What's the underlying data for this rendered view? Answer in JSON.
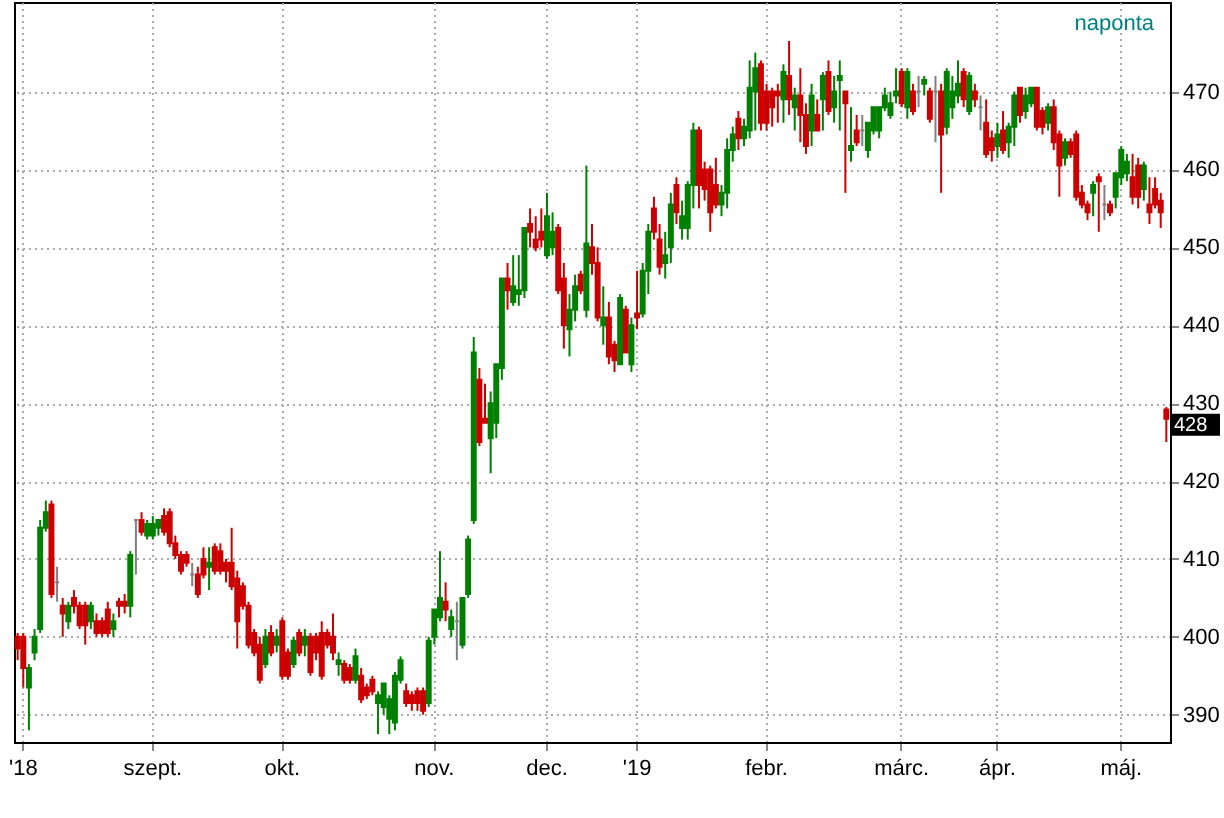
{
  "chart_data": {
    "type": "candlestick",
    "categories": [
      null,
      "'18",
      null,
      null,
      null,
      null,
      null,
      null,
      null,
      null,
      null,
      null,
      null,
      null,
      null,
      null,
      null,
      null,
      null,
      null,
      null,
      null,
      null,
      null,
      "szept.",
      null,
      null,
      null,
      null,
      null,
      null,
      null,
      null,
      null,
      null,
      null,
      null,
      null,
      null,
      null,
      null,
      null,
      null,
      null,
      null,
      null,
      null,
      "okt.",
      null,
      null,
      null,
      null,
      null,
      null,
      null,
      null,
      null,
      null,
      null,
      null,
      null,
      null,
      null,
      null,
      null,
      null,
      null,
      null,
      null,
      null,
      null,
      null,
      null,
      null,
      "nov.",
      null,
      null,
      null,
      null,
      null,
      null,
      null,
      null,
      null,
      null,
      null,
      null,
      null,
      null,
      null,
      null,
      null,
      null,
      null,
      "dec.",
      null,
      null,
      null,
      null,
      null,
      null,
      null,
      null,
      null,
      null,
      null,
      null,
      null,
      null,
      null,
      "'19",
      null,
      null,
      null,
      null,
      null,
      null,
      null,
      null,
      null,
      null,
      null,
      null,
      null,
      null,
      null,
      null,
      null,
      null,
      null,
      null,
      null,
      null,
      "febr.",
      null,
      null,
      null,
      null,
      null,
      null,
      null,
      null,
      null,
      null,
      null,
      null,
      null,
      null,
      null,
      null,
      null,
      null,
      null,
      null,
      null,
      null,
      null,
      "márc.",
      null,
      null,
      null,
      null,
      null,
      null,
      null,
      null,
      null,
      null,
      null,
      null,
      null,
      null,
      null,
      null,
      "ápr.",
      null,
      null,
      null,
      null,
      null,
      null,
      null,
      null,
      null,
      null,
      null,
      null,
      null,
      null,
      null,
      null,
      null,
      null,
      null,
      null,
      null,
      "máj.",
      null,
      null,
      null,
      null,
      null,
      null,
      null,
      null
    ],
    "ohlc": [
      [
        400,
        400.5,
        397,
        398.5
      ],
      [
        400,
        400.5,
        393.5,
        396
      ],
      [
        393.5,
        396.5,
        388,
        396
      ],
      [
        398,
        401,
        397,
        400
      ],
      [
        401,
        415,
        400.5,
        414
      ],
      [
        414,
        417.5,
        413.5,
        416
      ],
      [
        417,
        417.5,
        405,
        405.5
      ],
      [
        407,
        409,
        404.5,
        407
      ],
      [
        404,
        405,
        400,
        403
      ],
      [
        402,
        404.5,
        401,
        404
      ],
      [
        405,
        406,
        403,
        404
      ],
      [
        404,
        404.5,
        401,
        401.5
      ],
      [
        404,
        404.5,
        399,
        401.5
      ],
      [
        402,
        404.5,
        401,
        404
      ],
      [
        402,
        403,
        400,
        400.5
      ],
      [
        402,
        402.5,
        400,
        400.5
      ],
      [
        403.5,
        404.5,
        400,
        400.5
      ],
      [
        401,
        403,
        400,
        402
      ],
      [
        404.5,
        405,
        402.5,
        404
      ],
      [
        404.5,
        405.5,
        403,
        404
      ],
      [
        404,
        411,
        402.5,
        410.5
      ],
      [
        415,
        415,
        408,
        415
      ],
      [
        415,
        416,
        413,
        413.5
      ],
      [
        413,
        415,
        412.5,
        414.5
      ],
      [
        413,
        415.5,
        412.5,
        414.5
      ],
      [
        414,
        415,
        413,
        415
      ],
      [
        415.5,
        416.5,
        413,
        413.5
      ],
      [
        416,
        416.5,
        411.5,
        412
      ],
      [
        412,
        413,
        410,
        410.5
      ],
      [
        410.5,
        411,
        408,
        408.5
      ],
      [
        410.5,
        411,
        409,
        409.5
      ],
      [
        408,
        409.5,
        406.5,
        408
      ],
      [
        408,
        409,
        405,
        405.5
      ],
      [
        410,
        411.5,
        407.5,
        408
      ],
      [
        409,
        411.5,
        406,
        409.5
      ],
      [
        411.5,
        412,
        408,
        408.5
      ],
      [
        411,
        412,
        408,
        408.5
      ],
      [
        409.5,
        410,
        407,
        408.5
      ],
      [
        409.5,
        414,
        406,
        406.5
      ],
      [
        407.5,
        408.5,
        398.5,
        402
      ],
      [
        406.5,
        407,
        403.5,
        404
      ],
      [
        404,
        404.5,
        398.5,
        399
      ],
      [
        400.5,
        401,
        397.5,
        398
      ],
      [
        399,
        400,
        394,
        394.5
      ],
      [
        396.5,
        401,
        396,
        400
      ],
      [
        400.5,
        401.5,
        397.5,
        398
      ],
      [
        399,
        401,
        398,
        400
      ],
      [
        402,
        402.5,
        394.5,
        395
      ],
      [
        398,
        398.5,
        394.5,
        395
      ],
      [
        396.5,
        400,
        396,
        399.5
      ],
      [
        400.5,
        401,
        397.5,
        398
      ],
      [
        399,
        401,
        397.5,
        400
      ],
      [
        400,
        400.5,
        395,
        395.5
      ],
      [
        400,
        400.5,
        397,
        398
      ],
      [
        400.5,
        402,
        394.5,
        395
      ],
      [
        400.5,
        401,
        398.5,
        399
      ],
      [
        400,
        403,
        397,
        398
      ],
      [
        396.5,
        398,
        395,
        397
      ],
      [
        396.5,
        397,
        394,
        394.5
      ],
      [
        396,
        396.5,
        394,
        394.5
      ],
      [
        394.5,
        398.5,
        394,
        397.5
      ],
      [
        395,
        396,
        391.5,
        392
      ],
      [
        393.5,
        394,
        392,
        392.5
      ],
      [
        394.5,
        395,
        392.5,
        393
      ],
      [
        391.5,
        393,
        387.5,
        392.5
      ],
      [
        391,
        394,
        390,
        394
      ],
      [
        389.5,
        392.5,
        387.5,
        392
      ],
      [
        389,
        395.5,
        388,
        395
      ],
      [
        394.5,
        397.5,
        394,
        397
      ],
      [
        393,
        394,
        391,
        391.5
      ],
      [
        392.5,
        393,
        390.5,
        391.5
      ],
      [
        393,
        393.5,
        390.5,
        391.5
      ],
      [
        393,
        393.5,
        390,
        390.5
      ],
      [
        391.5,
        400,
        391,
        399.5
      ],
      [
        400,
        403.5,
        399,
        403.5
      ],
      [
        402.5,
        411,
        402,
        405
      ],
      [
        404.5,
        407,
        402,
        403.5
      ],
      [
        401,
        403.5,
        400,
        402.5
      ],
      [
        402,
        404.5,
        397,
        402
      ],
      [
        399,
        405,
        398.5,
        405
      ],
      [
        405.5,
        413,
        405,
        412.5
      ],
      [
        415,
        438.5,
        414.5,
        436.5
      ],
      [
        433,
        434.5,
        424.5,
        425
      ],
      [
        428,
        432.5,
        427.5,
        427.5
      ],
      [
        425.5,
        431.5,
        421,
        430
      ],
      [
        427.5,
        435,
        425.5,
        435
      ],
      [
        434.5,
        446,
        433,
        446
      ],
      [
        446,
        448,
        442,
        444.5
      ],
      [
        443,
        449,
        442.5,
        445
      ],
      [
        444,
        449,
        442.5,
        444.5
      ],
      [
        444.5,
        452.5,
        443.5,
        452.5
      ],
      [
        453,
        455,
        450,
        452
      ],
      [
        451,
        454,
        449.5,
        450
      ],
      [
        452,
        455,
        450,
        451
      ],
      [
        449,
        457,
        448.5,
        454
      ],
      [
        450,
        454.5,
        449,
        452
      ],
      [
        452.5,
        453,
        444,
        444.5
      ],
      [
        446,
        448,
        437,
        440
      ],
      [
        439.5,
        444,
        436,
        442
      ],
      [
        442,
        446.5,
        440.5,
        445
      ],
      [
        446.5,
        447,
        444,
        444.5
      ],
      [
        442,
        460.5,
        441,
        450.5
      ],
      [
        450,
        453,
        446.5,
        448
      ],
      [
        448,
        450,
        440.5,
        441
      ],
      [
        440,
        445,
        437.5,
        441
      ],
      [
        441,
        443,
        435,
        436
      ],
      [
        437.5,
        438,
        434,
        435.5
      ],
      [
        435,
        444,
        435,
        443.5
      ],
      [
        442,
        442.5,
        436.5,
        436.5
      ],
      [
        435,
        441,
        434,
        440
      ],
      [
        441.5,
        447,
        439.5,
        441
      ],
      [
        441.5,
        448,
        441,
        447
      ],
      [
        447,
        453,
        444,
        452
      ],
      [
        455,
        456.5,
        451,
        452
      ],
      [
        451,
        453,
        446.5,
        447.5
      ],
      [
        448,
        452,
        446,
        449
      ],
      [
        450,
        457,
        448,
        455.5
      ],
      [
        458,
        459,
        453,
        454.5
      ],
      [
        452.5,
        456,
        451,
        454
      ],
      [
        452.5,
        458.5,
        451,
        458
      ],
      [
        458,
        466,
        455,
        465
      ],
      [
        465,
        465.5,
        455,
        458
      ],
      [
        460,
        461,
        456,
        457.5
      ],
      [
        460,
        460.5,
        452,
        454.5
      ],
      [
        458,
        461.5,
        455,
        455.5
      ],
      [
        455.5,
        458,
        454,
        457
      ],
      [
        457,
        464,
        455,
        462.5
      ],
      [
        462.5,
        465.5,
        461,
        464.5
      ],
      [
        466.5,
        467.5,
        462.5,
        464
      ],
      [
        464,
        466.5,
        463,
        465.5
      ],
      [
        465,
        474,
        464,
        470.5
      ],
      [
        470,
        475,
        465,
        473
      ],
      [
        473.5,
        474,
        465,
        466
      ],
      [
        470,
        471,
        465,
        466
      ],
      [
        470,
        470.5,
        465.5,
        468
      ],
      [
        470,
        471,
        466,
        469.5
      ],
      [
        469,
        473.5,
        466,
        472.5
      ],
      [
        472,
        476.5,
        467,
        469
      ],
      [
        468,
        470.5,
        465,
        469.5
      ],
      [
        469.5,
        473,
        463.5,
        467
      ],
      [
        467,
        468.5,
        462,
        463
      ],
      [
        465,
        471,
        463,
        469.5
      ],
      [
        467,
        469,
        465,
        465
      ],
      [
        469,
        472.5,
        465,
        472
      ],
      [
        472.5,
        474,
        467,
        467.5
      ],
      [
        468,
        472,
        466,
        470
      ],
      [
        471.5,
        474,
        465,
        472
      ],
      [
        470,
        470,
        457,
        468.5
      ],
      [
        462.5,
        468,
        461,
        463
      ],
      [
        465,
        467,
        463,
        463.5
      ],
      [
        465,
        467,
        463,
        465
      ],
      [
        462.5,
        466,
        461.5,
        466
      ],
      [
        465,
        468,
        464.5,
        468
      ],
      [
        465,
        468,
        464,
        468
      ],
      [
        468,
        470.5,
        467.5,
        469.5
      ],
      [
        467,
        470,
        466.5,
        468.5
      ],
      [
        469.5,
        473,
        468.5,
        470
      ],
      [
        472.5,
        473,
        468,
        468.5
      ],
      [
        468,
        473,
        466.5,
        472.5
      ],
      [
        470,
        471,
        467,
        467.5
      ],
      [
        470,
        472,
        468,
        470
      ],
      [
        471,
        472,
        469.5,
        471.5
      ],
      [
        470,
        470.5,
        466,
        466.5
      ],
      [
        470,
        472,
        463.5,
        470
      ],
      [
        470,
        471,
        457,
        464.5
      ],
      [
        465.5,
        473,
        464.5,
        472.5
      ],
      [
        468,
        472,
        466.5,
        470
      ],
      [
        469.5,
        474,
        468.5,
        471
      ],
      [
        472.5,
        473,
        468,
        469
      ],
      [
        467.5,
        472.5,
        467,
        472
      ],
      [
        470,
        471,
        468,
        469
      ],
      [
        468,
        469.5,
        465,
        468
      ],
      [
        466,
        469,
        461.5,
        462
      ],
      [
        464,
        465,
        461,
        462.5
      ],
      [
        463,
        466,
        461.5,
        464.5
      ],
      [
        465,
        467.5,
        462,
        462.5
      ],
      [
        463.5,
        466,
        461.5,
        465.5
      ],
      [
        465.5,
        470,
        463,
        469.5
      ],
      [
        470.5,
        470.5,
        466,
        467
      ],
      [
        467.5,
        470.5,
        466.5,
        469.5
      ],
      [
        468.5,
        470.5,
        468,
        470.5
      ],
      [
        470.5,
        470.5,
        465,
        465.5
      ],
      [
        467.5,
        468,
        464.5,
        465.5
      ],
      [
        466,
        468.5,
        465,
        468
      ],
      [
        468,
        469,
        462.5,
        463.5
      ],
      [
        464.5,
        465,
        456.5,
        460.5
      ],
      [
        461.5,
        464,
        460.5,
        463.5
      ],
      [
        463.5,
        464,
        461.5,
        462
      ],
      [
        464.5,
        465,
        456,
        456.5
      ],
      [
        457,
        458,
        455,
        455.5
      ],
      [
        455.5,
        456,
        453.5,
        454.5
      ],
      [
        457,
        458.5,
        454,
        458
      ],
      [
        459,
        459.5,
        452,
        458.5
      ],
      [
        455.5,
        458,
        453.5,
        455.5
      ],
      [
        455.5,
        456,
        454,
        454.5
      ],
      [
        456.5,
        459.5,
        455,
        459.5
      ],
      [
        459,
        463,
        458,
        462.5
      ],
      [
        459.5,
        462,
        458.5,
        461
      ],
      [
        459,
        462,
        455.5,
        456.5
      ],
      [
        460.5,
        461.5,
        455,
        456.5
      ],
      [
        457.5,
        461,
        456,
        460.5
      ],
      [
        455.5,
        459,
        453,
        454.5
      ],
      [
        457.5,
        459,
        455,
        455.5
      ],
      [
        456,
        457,
        452.5,
        454.5
      ],
      [
        429.2,
        429.5,
        425,
        428
      ]
    ],
    "colors": [
      "#cc0000",
      "#cc0000",
      "#008000",
      "#008000",
      "#008000",
      "#008000",
      "#cc0000",
      "#808080",
      "#cc0000",
      "#008000",
      "#cc0000",
      "#cc0000",
      "#cc0000",
      "#008000",
      "#cc0000",
      "#cc0000",
      "#cc0000",
      "#008000",
      "#cc0000",
      "#cc0000",
      "#008000",
      "#808080",
      "#cc0000",
      "#008000",
      "#008000",
      "#008000",
      "#cc0000",
      "#cc0000",
      "#cc0000",
      "#cc0000",
      "#cc0000",
      "#808080",
      "#cc0000",
      "#cc0000",
      "#008000",
      "#cc0000",
      "#cc0000",
      "#cc0000",
      "#cc0000",
      "#cc0000",
      "#cc0000",
      "#cc0000",
      "#cc0000",
      "#cc0000",
      "#008000",
      "#cc0000",
      "#008000",
      "#cc0000",
      "#cc0000",
      "#008000",
      "#cc0000",
      "#008000",
      "#cc0000",
      "#cc0000",
      "#cc0000",
      "#cc0000",
      "#cc0000",
      "#008000",
      "#cc0000",
      "#cc0000",
      "#008000",
      "#cc0000",
      "#cc0000",
      "#cc0000",
      "#008000",
      "#008000",
      "#008000",
      "#008000",
      "#008000",
      "#cc0000",
      "#cc0000",
      "#cc0000",
      "#cc0000",
      "#008000",
      "#008000",
      "#008000",
      "#cc0000",
      "#008000",
      "#808080",
      "#008000",
      "#008000",
      "#008000",
      "#cc0000",
      "#cc0000",
      "#008000",
      "#008000",
      "#008000",
      "#cc0000",
      "#008000",
      "#008000",
      "#008000",
      "#cc0000",
      "#cc0000",
      "#cc0000",
      "#008000",
      "#008000",
      "#cc0000",
      "#cc0000",
      "#008000",
      "#008000",
      "#cc0000",
      "#008000",
      "#cc0000",
      "#cc0000",
      "#008000",
      "#cc0000",
      "#cc0000",
      "#008000",
      "#cc0000",
      "#008000",
      "#cc0000",
      "#008000",
      "#008000",
      "#cc0000",
      "#cc0000",
      "#008000",
      "#008000",
      "#cc0000",
      "#008000",
      "#008000",
      "#008000",
      "#cc0000",
      "#cc0000",
      "#cc0000",
      "#cc0000",
      "#008000",
      "#008000",
      "#008000",
      "#cc0000",
      "#008000",
      "#008000",
      "#008000",
      "#cc0000",
      "#cc0000",
      "#cc0000",
      "#cc0000",
      "#008000",
      "#cc0000",
      "#008000",
      "#cc0000",
      "#cc0000",
      "#008000",
      "#cc0000",
      "#008000",
      "#cc0000",
      "#008000",
      "#008000",
      "#cc0000",
      "#008000",
      "#cc0000",
      "#808080",
      "#008000",
      "#008000",
      "#008000",
      "#008000",
      "#008000",
      "#008000",
      "#cc0000",
      "#008000",
      "#cc0000",
      "#808080",
      "#008000",
      "#cc0000",
      "#808080",
      "#cc0000",
      "#008000",
      "#008000",
      "#008000",
      "#cc0000",
      "#008000",
      "#cc0000",
      "#808080",
      "#cc0000",
      "#cc0000",
      "#008000",
      "#cc0000",
      "#008000",
      "#008000",
      "#cc0000",
      "#008000",
      "#008000",
      "#cc0000",
      "#cc0000",
      "#008000",
      "#cc0000",
      "#cc0000",
      "#008000",
      "#cc0000",
      "#cc0000",
      "#cc0000",
      "#cc0000",
      "#008000",
      "#cc0000",
      "#808080",
      "#cc0000",
      "#008000",
      "#008000",
      "#008000",
      "#cc0000",
      "#cc0000",
      "#008000",
      "#cc0000",
      "#cc0000",
      "#cc0000",
      "#cc0000"
    ],
    "ylim": [
      386.5,
      481.5
    ],
    "yticks": [
      390,
      400,
      410,
      420,
      430,
      440,
      450,
      460,
      470
    ],
    "grid": true,
    "annotations": [
      "naponta",
      "428"
    ]
  }
}
